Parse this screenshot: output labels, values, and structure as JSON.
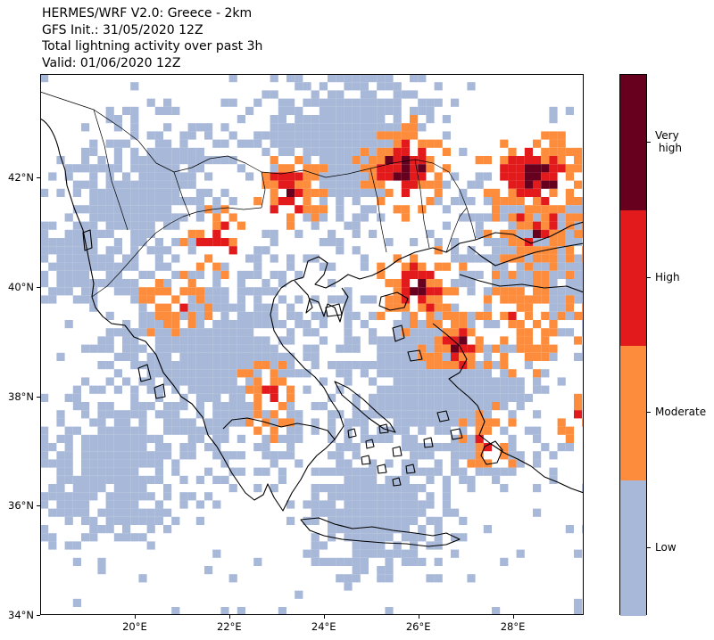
{
  "title": {
    "lines": [
      "HERMES/WRF V2.0: Greece - 2km",
      "GFS Init.: 31/05/2020 12Z",
      "Total lightning activity over past 3h",
      "Valid: 01/06/2020 12Z"
    ]
  },
  "map": {
    "extent": {
      "lon_min": 18.0,
      "lon_max": 29.5,
      "lat_min": 34.0,
      "lat_max": 43.9
    },
    "lat_ticks": [
      {
        "value": 34,
        "label": "34°N"
      },
      {
        "value": 36,
        "label": "36°N"
      },
      {
        "value": 38,
        "label": "38°N"
      },
      {
        "value": 40,
        "label": "40°N"
      },
      {
        "value": 42,
        "label": "42°N"
      }
    ],
    "lon_ticks": [
      {
        "value": 20,
        "label": "20°E"
      },
      {
        "value": 22,
        "label": "22°E"
      },
      {
        "value": 24,
        "label": "24°E"
      },
      {
        "value": 26,
        "label": "26°E"
      },
      {
        "value": 28,
        "label": "28°E"
      }
    ]
  },
  "colorbar": {
    "levels": [
      {
        "label": "Low",
        "color": "#a8b8d8"
      },
      {
        "label": "Moderate",
        "color": "#fd8d3c"
      },
      {
        "label": "High",
        "color": "#e31a1c"
      },
      {
        "label": "Very\n high",
        "color": "#67001f"
      }
    ]
  }
}
